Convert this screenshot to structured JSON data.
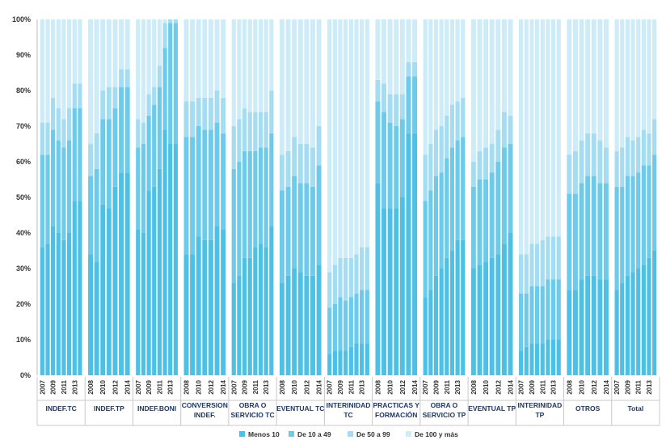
{
  "chart_data": {
    "type": "bar",
    "stacked": true,
    "percent": true,
    "ylim": [
      0,
      100
    ],
    "yticks": [
      "0%",
      "10%",
      "20%",
      "30%",
      "40%",
      "50%",
      "60%",
      "70%",
      "80%",
      "90%",
      "100%"
    ],
    "grid": false,
    "legend_position": "bottom",
    "series_names": [
      "Menos 10",
      "De 10 a 49",
      "De 50 a 99",
      "De 100 y más"
    ],
    "colors": [
      "#4dc0e6",
      "#6ccbeb",
      "#a4dcf2",
      "#cdecf8"
    ],
    "groups": [
      {
        "name": "INDEF.TC",
        "years": [
          2007,
          2008,
          2009,
          2010,
          2011,
          2012,
          2013,
          2014
        ],
        "shown_year_labels": [
          "2007",
          "2009",
          "2011",
          "2013"
        ],
        "values": [
          [
            36,
            26,
            9,
            29
          ],
          [
            37,
            25,
            9,
            29
          ],
          [
            42,
            27,
            9,
            22
          ],
          [
            40,
            26,
            9,
            25
          ],
          [
            38,
            26,
            8,
            28
          ],
          [
            40,
            26,
            9,
            25
          ],
          [
            49,
            26,
            7,
            18
          ],
          [
            49,
            26,
            7,
            18
          ]
        ]
      },
      {
        "name": "INDEF.TP",
        "years": [
          2008,
          2009,
          2010,
          2011,
          2012,
          2013,
          2014
        ],
        "shown_year_labels": [
          "2008",
          "2010",
          "2012",
          "2014"
        ],
        "values": [
          [
            34,
            22,
            9,
            35
          ],
          [
            32,
            26,
            10,
            32
          ],
          [
            48,
            24,
            8,
            20
          ],
          [
            47,
            25,
            9,
            19
          ],
          [
            53,
            22,
            6,
            19
          ],
          [
            57,
            24,
            5,
            14
          ],
          [
            57,
            24,
            5,
            14
          ]
        ]
      },
      {
        "name": "INDEF.BONI",
        "years": [
          2007,
          2008,
          2009,
          2010,
          2011,
          2012,
          2013,
          2014
        ],
        "shown_year_labels": [
          "2007",
          "2009",
          "2011",
          "2013"
        ],
        "values": [
          [
            41,
            23,
            8,
            28
          ],
          [
            40,
            25,
            6,
            29
          ],
          [
            52,
            21,
            6,
            21
          ],
          [
            53,
            23,
            5,
            19
          ],
          [
            58,
            23,
            6,
            13
          ],
          [
            69,
            23,
            7,
            1
          ],
          [
            65,
            34,
            1,
            0
          ],
          [
            65,
            34,
            1,
            0
          ]
        ]
      },
      {
        "name": "CONVERSION INDEF.",
        "years": [
          2008,
          2009,
          2010,
          2011,
          2012,
          2013,
          2014
        ],
        "shown_year_labels": [
          "2008",
          "2010",
          "2012",
          "2014"
        ],
        "values": [
          [
            34,
            33,
            10,
            23
          ],
          [
            34,
            33,
            10,
            23
          ],
          [
            39,
            31,
            8,
            22
          ],
          [
            38,
            31,
            9,
            22
          ],
          [
            38,
            31,
            9,
            22
          ],
          [
            42,
            29,
            9,
            20
          ],
          [
            41,
            27,
            10,
            22
          ]
        ]
      },
      {
        "name": "OBRA O SERVICIO TC",
        "years": [
          2007,
          2008,
          2009,
          2010,
          2011,
          2012,
          2013,
          2014
        ],
        "shown_year_labels": [
          "2007",
          "2009",
          "2011",
          "2013"
        ],
        "values": [
          [
            26,
            32,
            12,
            30
          ],
          [
            28,
            32,
            12,
            28
          ],
          [
            33,
            30,
            12,
            25
          ],
          [
            33,
            30,
            11,
            26
          ],
          [
            36,
            27,
            11,
            26
          ],
          [
            37,
            27,
            10,
            26
          ],
          [
            36,
            28,
            10,
            26
          ],
          [
            42,
            26,
            12,
            20
          ]
        ]
      },
      {
        "name": "EVENTUAL TC",
        "years": [
          2008,
          2009,
          2010,
          2011,
          2012,
          2013,
          2014
        ],
        "shown_year_labels": [
          "2008",
          "2010",
          "2012",
          "2014"
        ],
        "values": [
          [
            26,
            26,
            10,
            38
          ],
          [
            28,
            25,
            10,
            37
          ],
          [
            30,
            26,
            11,
            33
          ],
          [
            29,
            25,
            11,
            35
          ],
          [
            28,
            26,
            11,
            35
          ],
          [
            28,
            25,
            11,
            36
          ],
          [
            31,
            28,
            11,
            30
          ]
        ]
      },
      {
        "name": "INTERINIDAD TC",
        "years": [
          2007,
          2008,
          2009,
          2010,
          2011,
          2012,
          2013,
          2014
        ],
        "shown_year_labels": [
          "2007",
          "2009",
          "2011",
          "2013"
        ],
        "values": [
          [
            6,
            13,
            10,
            71
          ],
          [
            7,
            13,
            11,
            69
          ],
          [
            7,
            15,
            11,
            67
          ],
          [
            7,
            14,
            12,
            67
          ],
          [
            8,
            14,
            11,
            67
          ],
          [
            9,
            14,
            11,
            66
          ],
          [
            9,
            15,
            12,
            64
          ],
          [
            9,
            15,
            12,
            64
          ]
        ]
      },
      {
        "name": "PRACTICAS Y FORMACIÓN",
        "years": [
          2008,
          2009,
          2010,
          2011,
          2012,
          2013,
          2014
        ],
        "shown_year_labels": [
          "2008",
          "2010",
          "2012",
          "2014"
        ],
        "values": [
          [
            54,
            23,
            6,
            17
          ],
          [
            47,
            27,
            8,
            18
          ],
          [
            47,
            24,
            8,
            21
          ],
          [
            47,
            23,
            9,
            21
          ],
          [
            50,
            22,
            7,
            21
          ],
          [
            68,
            16,
            4,
            12
          ],
          [
            68,
            16,
            4,
            12
          ]
        ]
      },
      {
        "name": "OBRA O SERVICIO TP",
        "years": [
          2007,
          2008,
          2009,
          2010,
          2011,
          2012,
          2013,
          2014
        ],
        "shown_year_labels": [
          "2007",
          "2009",
          "2011",
          "2013"
        ],
        "values": [
          [
            22,
            27,
            13,
            38
          ],
          [
            24,
            28,
            13,
            35
          ],
          [
            28,
            28,
            13,
            31
          ],
          [
            30,
            27,
            13,
            30
          ],
          [
            33,
            28,
            12,
            27
          ],
          [
            35,
            29,
            12,
            24
          ],
          [
            38,
            28,
            11,
            23
          ],
          [
            38,
            29,
            11,
            22
          ]
        ]
      },
      {
        "name": "EVENTUAL TP",
        "years": [
          2008,
          2009,
          2010,
          2011,
          2012,
          2013,
          2014
        ],
        "shown_year_labels": [
          "2008",
          "2010",
          "2012",
          "2014"
        ],
        "values": [
          [
            30,
            23,
            7,
            40
          ],
          [
            31,
            24,
            8,
            37
          ],
          [
            32,
            23,
            9,
            36
          ],
          [
            33,
            24,
            8,
            35
          ],
          [
            34,
            26,
            9,
            31
          ],
          [
            37,
            27,
            10,
            26
          ],
          [
            40,
            25,
            8,
            27
          ]
        ]
      },
      {
        "name": "INTERINIDAD TP",
        "years": [
          2007,
          2008,
          2009,
          2010,
          2011,
          2012,
          2013,
          2014
        ],
        "shown_year_labels": [
          "2007",
          "2009",
          "2011",
          "2013"
        ],
        "values": [
          [
            7,
            16,
            11,
            66
          ],
          [
            8,
            15,
            11,
            66
          ],
          [
            9,
            16,
            12,
            63
          ],
          [
            9,
            16,
            12,
            63
          ],
          [
            9,
            16,
            13,
            62
          ],
          [
            10,
            17,
            12,
            61
          ],
          [
            10,
            17,
            12,
            61
          ],
          [
            10,
            17,
            12,
            61
          ]
        ]
      },
      {
        "name": "OTROS",
        "years": [
          2008,
          2009,
          2010,
          2011,
          2012,
          2013,
          2014
        ],
        "shown_year_labels": [
          "2008",
          "2010",
          "2012",
          "2014"
        ],
        "values": [
          [
            24,
            27,
            11,
            38
          ],
          [
            24,
            27,
            12,
            37
          ],
          [
            27,
            27,
            12,
            34
          ],
          [
            28,
            28,
            12,
            32
          ],
          [
            28,
            28,
            12,
            32
          ],
          [
            27,
            27,
            12,
            34
          ],
          [
            27,
            27,
            10,
            36
          ]
        ]
      },
      {
        "name": "Total",
        "years": [
          2007,
          2008,
          2009,
          2010,
          2011,
          2012,
          2013,
          2014
        ],
        "shown_year_labels": [
          "2007",
          "2009",
          "2011",
          "2013"
        ],
        "values": [
          [
            24,
            29,
            10,
            37
          ],
          [
            26,
            27,
            11,
            36
          ],
          [
            28,
            28,
            11,
            33
          ],
          [
            29,
            27,
            10,
            34
          ],
          [
            30,
            27,
            10,
            33
          ],
          [
            31,
            28,
            10,
            31
          ],
          [
            33,
            26,
            9,
            32
          ],
          [
            35,
            27,
            10,
            28
          ]
        ]
      }
    ]
  }
}
